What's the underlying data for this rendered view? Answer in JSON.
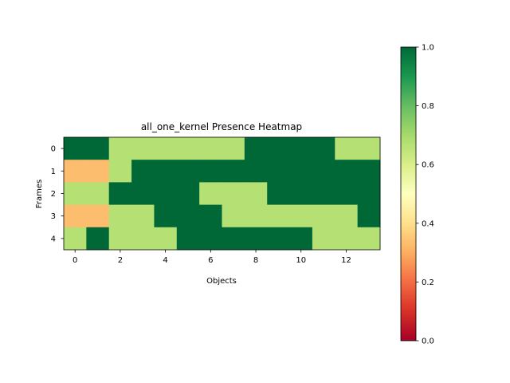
{
  "chart_data": {
    "type": "heatmap",
    "title": "all_one_kernel Presence Heatmap",
    "xlabel": "Objects",
    "ylabel": "Frames",
    "x_ticks": [
      0,
      2,
      4,
      6,
      8,
      10,
      12
    ],
    "y_ticks": [
      0,
      1,
      2,
      3,
      4
    ],
    "colormap": "RdYlGn",
    "vmin": 0.0,
    "vmax": 1.0,
    "colorbar_ticks": [
      "0.0",
      "0.2",
      "0.4",
      "0.6",
      "0.8",
      "1.0"
    ],
    "values": [
      [
        1.0,
        1.0,
        0.67,
        0.67,
        0.67,
        0.67,
        0.67,
        0.67,
        1.0,
        1.0,
        1.0,
        1.0,
        0.67,
        0.67
      ],
      [
        0.33,
        0.33,
        0.67,
        1.0,
        1.0,
        1.0,
        1.0,
        1.0,
        1.0,
        1.0,
        1.0,
        1.0,
        1.0,
        1.0
      ],
      [
        0.67,
        0.67,
        1.0,
        1.0,
        1.0,
        1.0,
        0.67,
        0.67,
        0.67,
        1.0,
        1.0,
        1.0,
        1.0,
        1.0
      ],
      [
        0.33,
        0.33,
        0.67,
        0.67,
        1.0,
        1.0,
        1.0,
        0.67,
        0.67,
        0.67,
        0.67,
        0.67,
        0.67,
        1.0
      ],
      [
        0.67,
        1.0,
        0.67,
        0.67,
        0.67,
        1.0,
        1.0,
        1.0,
        1.0,
        1.0,
        1.0,
        0.67,
        0.67,
        0.67
      ]
    ]
  }
}
